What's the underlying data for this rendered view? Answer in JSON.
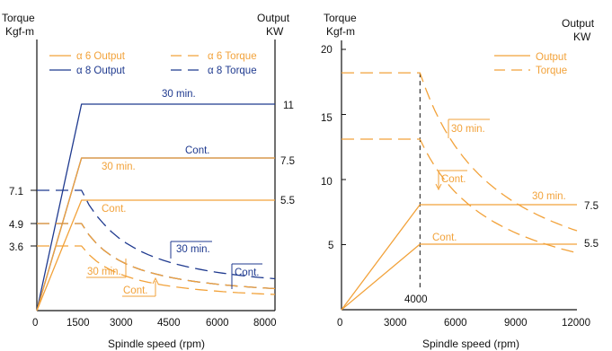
{
  "colors": {
    "orange": "#f2a23a",
    "blue": "#1f3a8f",
    "axis": "#111111"
  },
  "chart_data": [
    {
      "type": "line",
      "ylabel_left": [
        "Torque",
        "Kgf-m"
      ],
      "ylabel_right": [
        "Output",
        "KW"
      ],
      "xlabel": "Spindle speed (rpm)",
      "xlim": [
        0,
        8000
      ],
      "x_ticks": [
        "0",
        "1500",
        "3000",
        "4500",
        "6000",
        "8000"
      ],
      "left_ticks": [
        "3.6",
        "4.9",
        "7.1"
      ],
      "right_ticks": [
        "5.5",
        "7.5",
        "11"
      ],
      "legend": {
        "placement": "top",
        "entries": [
          {
            "label": "α 6 Output",
            "color": "#f2a23a",
            "dash": "solid"
          },
          {
            "label": "α 6 Torque",
            "color": "#f2a23a",
            "dash": "dashed"
          },
          {
            "label": "α 8 Output",
            "color": "#1f3a8f",
            "dash": "solid"
          },
          {
            "label": "α 8 Torque",
            "color": "#1f3a8f",
            "dash": "dashed"
          }
        ]
      },
      "series": [
        {
          "name": "α 8 Output",
          "label": "30 min.",
          "color": "#1f3a8f",
          "dash": "solid",
          "axis": "right",
          "x": [
            0,
            1500,
            8000
          ],
          "y": [
            0,
            11,
            11
          ]
        },
        {
          "name": "α 8 Output",
          "label": "Cont.",
          "color": "#1f3a8f",
          "dash": "solid",
          "axis": "right",
          "x": [
            0,
            1500,
            8000
          ],
          "y": [
            0,
            7.5,
            7.5
          ]
        },
        {
          "name": "α 6 Output",
          "label": "30 min.",
          "color": "#f2a23a",
          "dash": "solid",
          "axis": "right",
          "x": [
            0,
            1500,
            8000
          ],
          "y": [
            0,
            7.5,
            7.5
          ]
        },
        {
          "name": "α 6 Output",
          "label": "Cont.",
          "color": "#f2a23a",
          "dash": "solid",
          "axis": "right",
          "x": [
            0,
            1500,
            8000
          ],
          "y": [
            0,
            5.5,
            5.5
          ]
        },
        {
          "name": "α 8 Torque",
          "label": "30 min.",
          "color": "#1f3a8f",
          "dash": "dashed",
          "axis": "left",
          "x": [
            0,
            1500,
            3000,
            4500,
            6000,
            8000
          ],
          "y": [
            7.1,
            7.1,
            3.6,
            2.4,
            1.8,
            1.35
          ]
        },
        {
          "name": "α 8 Torque",
          "label": "Cont.",
          "color": "#1f3a8f",
          "dash": "dashed",
          "axis": "left",
          "x": [
            0,
            1500,
            3000,
            4500,
            6000,
            8000
          ],
          "y": [
            4.9,
            4.9,
            2.45,
            1.63,
            1.22,
            0.92
          ]
        },
        {
          "name": "α 6 Torque",
          "label": "30 min.",
          "color": "#f2a23a",
          "dash": "dashed",
          "axis": "left",
          "x": [
            0,
            1500,
            3000,
            4500,
            6000,
            8000
          ],
          "y": [
            4.9,
            4.9,
            2.45,
            1.63,
            1.22,
            0.92
          ]
        },
        {
          "name": "α 6 Torque",
          "label": "Cont.",
          "color": "#f2a23a",
          "dash": "dashed",
          "axis": "left",
          "x": [
            0,
            1500,
            3000,
            4500,
            6000,
            8000
          ],
          "y": [
            3.6,
            3.6,
            1.8,
            1.2,
            0.9,
            0.67
          ]
        }
      ],
      "annotations": {
        "b8_30": "30 min.",
        "b8_cont": "Cont.",
        "o6_30": "30 min.",
        "o6_cont": "Cont.",
        "b8t_30": "30 min.",
        "b8t_cont": "Cont.",
        "o6t_30": "30 min.",
        "o6t_cont": "Cont."
      }
    },
    {
      "type": "line",
      "ylabel_left": [
        "Torque",
        "Kgf-m"
      ],
      "ylabel_right": [
        "Output",
        "KW"
      ],
      "xlabel": "Spindle speed (rpm)",
      "xlim": [
        0,
        12000
      ],
      "ylim": [
        0,
        20
      ],
      "x_ticks": [
        "0",
        "3000",
        "6000",
        "9000",
        "12000"
      ],
      "y_ticks": [
        "5",
        "10",
        "15",
        "20"
      ],
      "right_ticks": [
        "5.5",
        "7.5"
      ],
      "base_speed_label": "4000",
      "legend": {
        "placement": "top-right",
        "entries": [
          {
            "label": "Output",
            "color": "#f2a23a",
            "dash": "solid"
          },
          {
            "label": "Torque",
            "color": "#f2a23a",
            "dash": "dashed"
          }
        ]
      },
      "series": [
        {
          "name": "Output",
          "label": "30 min.",
          "color": "#f2a23a",
          "dash": "solid",
          "axis": "right",
          "x": [
            0,
            4000,
            12000
          ],
          "y": [
            0,
            7.5,
            7.5
          ]
        },
        {
          "name": "Output",
          "label": "Cont.",
          "color": "#f2a23a",
          "dash": "solid",
          "axis": "right",
          "x": [
            0,
            4000,
            12000
          ],
          "y": [
            0,
            5.5,
            5.5
          ]
        },
        {
          "name": "Torque",
          "label": "30 min.",
          "color": "#f2a23a",
          "dash": "dashed",
          "axis": "left",
          "x": [
            0,
            4000,
            5000,
            6000,
            7000,
            8000,
            9000,
            10000,
            11000,
            12000
          ],
          "y": [
            18.2,
            18.2,
            14.6,
            12.2,
            10.4,
            9.1,
            8.1,
            7.3,
            6.6,
            6.1
          ]
        },
        {
          "name": "Torque",
          "label": "Cont.",
          "color": "#f2a23a",
          "dash": "dashed",
          "axis": "left",
          "x": [
            0,
            4000,
            5000,
            6000,
            7000,
            8000,
            9000,
            10000,
            11000,
            12000
          ],
          "y": [
            13.1,
            13.1,
            10.5,
            8.7,
            7.5,
            6.6,
            5.8,
            5.2,
            4.8,
            4.4
          ]
        }
      ],
      "annotations": {
        "out_30": "30 min.",
        "out_cont": "Cont.",
        "tq_30": "30 min.",
        "tq_cont": "Cont."
      }
    }
  ]
}
